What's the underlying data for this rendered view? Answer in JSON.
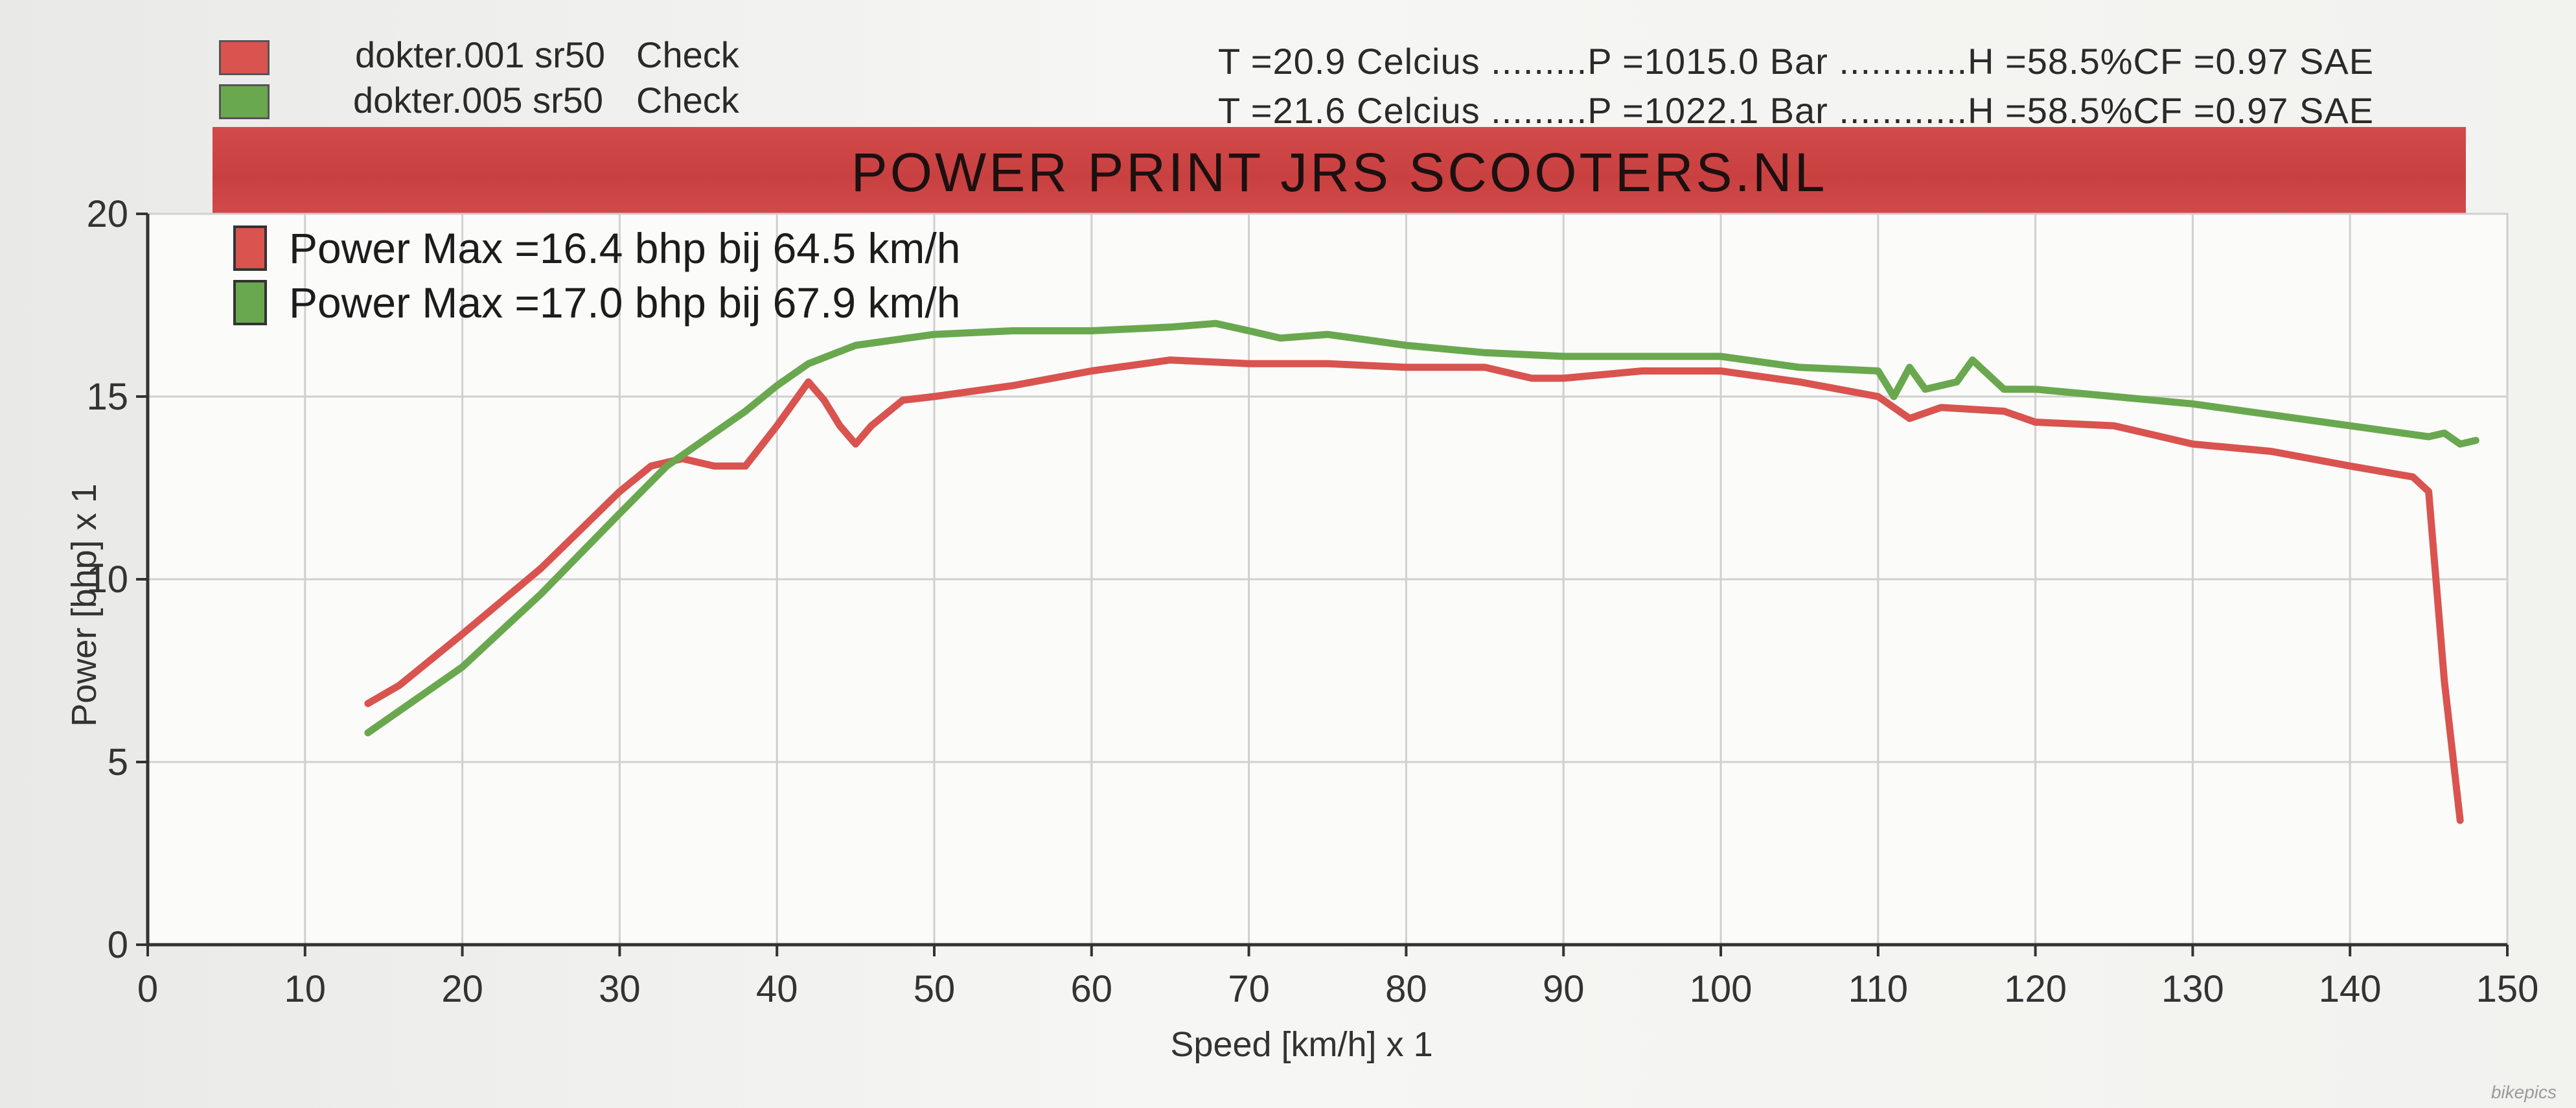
{
  "header": {
    "runs": [
      {
        "name": "dokter.001 sr50",
        "status": "Check",
        "conditions": "T =20.9 Celcius .........P =1015.0 Bar ............H =58.5%CF =0.97 SAE",
        "color": "#d9534f"
      },
      {
        "name": "dokter.005 sr50",
        "status": "Check",
        "conditions": "T =21.6 Celcius .........P =1022.1 Bar ............H =58.5%CF =0.97 SAE",
        "color": "#6aa84f"
      }
    ],
    "banner_title": "POWER PRINT JRS SCOOTERS.NL",
    "banner_color": "#d24a4a"
  },
  "watermark": "bikepics",
  "chart_data": {
    "type": "line",
    "xlabel": "Speed [km/h] x 1",
    "ylabel": "Power [bhp] x 1",
    "xlim": [
      0,
      150
    ],
    "ylim": [
      0,
      20
    ],
    "x_ticks": [
      0,
      10,
      20,
      30,
      40,
      50,
      60,
      70,
      80,
      90,
      100,
      110,
      120,
      130,
      140,
      150
    ],
    "y_ticks": [
      0,
      5,
      10,
      15,
      20
    ],
    "grid": true,
    "legend_position": "top-left",
    "legend": [
      "Power Max =16.4 bhp bij 64.5 km/h",
      "Power Max =17.0 bhp bij 67.9 km/h"
    ],
    "series": [
      {
        "color": "#d9534f",
        "points": [
          [
            14,
            6.6
          ],
          [
            16,
            7.1
          ],
          [
            20,
            8.5
          ],
          [
            25,
            10.3
          ],
          [
            30,
            12.4
          ],
          [
            32,
            13.1
          ],
          [
            34,
            13.3
          ],
          [
            36,
            13.1
          ],
          [
            38,
            13.1
          ],
          [
            40,
            14.2
          ],
          [
            42,
            15.4
          ],
          [
            43,
            14.9
          ],
          [
            44,
            14.2
          ],
          [
            45,
            13.7
          ],
          [
            46,
            14.2
          ],
          [
            48,
            14.9
          ],
          [
            50,
            15.0
          ],
          [
            55,
            15.3
          ],
          [
            60,
            15.7
          ],
          [
            65,
            16.0
          ],
          [
            70,
            15.9
          ],
          [
            75,
            15.9
          ],
          [
            80,
            15.8
          ],
          [
            85,
            15.8
          ],
          [
            88,
            15.5
          ],
          [
            90,
            15.5
          ],
          [
            95,
            15.7
          ],
          [
            100,
            15.7
          ],
          [
            105,
            15.4
          ],
          [
            110,
            15.0
          ],
          [
            112,
            14.4
          ],
          [
            114,
            14.7
          ],
          [
            118,
            14.6
          ],
          [
            120,
            14.3
          ],
          [
            125,
            14.2
          ],
          [
            130,
            13.7
          ],
          [
            135,
            13.5
          ],
          [
            140,
            13.1
          ],
          [
            144,
            12.8
          ],
          [
            145,
            12.4
          ],
          [
            146,
            7.2
          ],
          [
            147,
            3.4
          ]
        ]
      },
      {
        "color": "#6aa84f",
        "points": [
          [
            14,
            5.8
          ],
          [
            20,
            7.6
          ],
          [
            25,
            9.6
          ],
          [
            30,
            11.8
          ],
          [
            33,
            13.1
          ],
          [
            35,
            13.7
          ],
          [
            38,
            14.6
          ],
          [
            40,
            15.3
          ],
          [
            42,
            15.9
          ],
          [
            45,
            16.4
          ],
          [
            50,
            16.7
          ],
          [
            55,
            16.8
          ],
          [
            60,
            16.8
          ],
          [
            65,
            16.9
          ],
          [
            67.9,
            17.0
          ],
          [
            70,
            16.8
          ],
          [
            72,
            16.6
          ],
          [
            75,
            16.7
          ],
          [
            80,
            16.4
          ],
          [
            85,
            16.2
          ],
          [
            90,
            16.1
          ],
          [
            95,
            16.1
          ],
          [
            100,
            16.1
          ],
          [
            105,
            15.8
          ],
          [
            110,
            15.7
          ],
          [
            111,
            15.0
          ],
          [
            112,
            15.8
          ],
          [
            113,
            15.2
          ],
          [
            115,
            15.4
          ],
          [
            116,
            16.0
          ],
          [
            118,
            15.2
          ],
          [
            120,
            15.2
          ],
          [
            125,
            15.0
          ],
          [
            130,
            14.8
          ],
          [
            135,
            14.5
          ],
          [
            140,
            14.2
          ],
          [
            145,
            13.9
          ],
          [
            146,
            14.0
          ],
          [
            147,
            13.7
          ],
          [
            148,
            13.8
          ]
        ]
      }
    ]
  }
}
